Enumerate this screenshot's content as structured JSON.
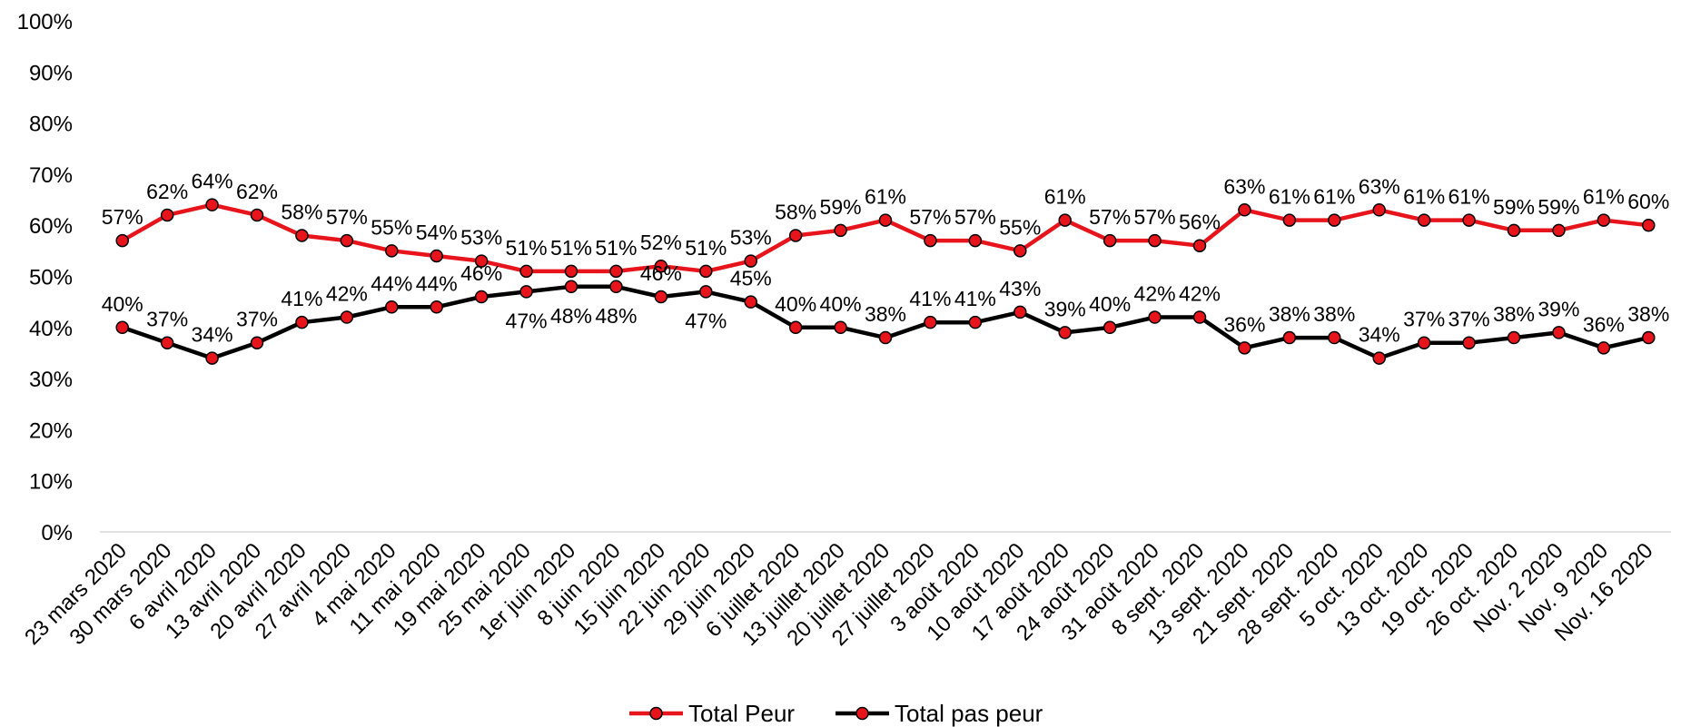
{
  "chart_data": {
    "type": "line",
    "categories": [
      "23 mars 2020",
      "30 mars 2020",
      "6 avril 2020",
      "13 avril 2020",
      "20 avril 2020",
      "27 avril 2020",
      "4 mai 2020",
      "11 mai 2020",
      "19 mai 2020",
      "25 mai 2020",
      "1er juin 2020",
      "8 juin 2020",
      "15 juin 2020",
      "22 juin 2020",
      "29 juin 2020",
      "6 juillet 2020",
      "13 juillet 2020",
      "20 juillet 2020",
      "27 juillet 2020",
      "3 août 2020",
      "10 août 2020",
      "17 août 2020",
      "24 août 2020",
      "31 août 2020",
      "8 sept. 2020",
      "13 sept. 2020",
      "21 sept. 2020",
      "28 sept. 2020",
      "5 oct. 2020",
      "13 oct. 2020",
      "19 oct. 2020",
      "26 oct. 2020",
      "Nov. 2 2020",
      "Nov. 9 2020",
      "Nov. 16 2020"
    ],
    "series": [
      {
        "name": "Total Peur",
        "color": "#e8141c",
        "values": [
          57,
          62,
          64,
          62,
          58,
          57,
          55,
          54,
          53,
          51,
          51,
          51,
          52,
          51,
          53,
          58,
          59,
          61,
          57,
          57,
          55,
          61,
          57,
          57,
          56,
          63,
          61,
          61,
          63,
          61,
          61,
          59,
          59,
          61,
          60
        ]
      },
      {
        "name": "Total pas peur",
        "color": "#000000",
        "values": [
          40,
          37,
          34,
          37,
          41,
          42,
          44,
          44,
          46,
          47,
          48,
          48,
          46,
          47,
          45,
          40,
          40,
          38,
          41,
          41,
          43,
          39,
          40,
          42,
          42,
          36,
          38,
          38,
          34,
          37,
          37,
          38,
          39,
          36,
          38
        ]
      }
    ],
    "y_ticks": [
      "0%",
      "10%",
      "20%",
      "30%",
      "40%",
      "50%",
      "60%",
      "70%",
      "80%",
      "90%",
      "100%"
    ],
    "ylim": [
      0,
      100
    ],
    "value_suffix": "%",
    "grid": false,
    "legend_position": "bottom-center",
    "title": "",
    "xlabel": "",
    "ylabel": ""
  }
}
